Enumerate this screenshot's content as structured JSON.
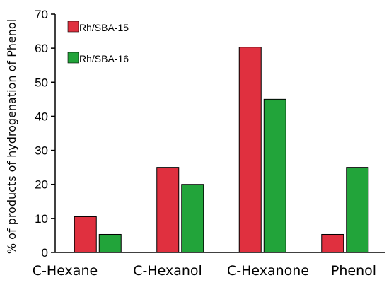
{
  "chart_data": {
    "type": "bar",
    "title": "",
    "xlabel": "",
    "ylabel": "% of products of hydrogenation of Phenol",
    "ylim": [
      0,
      70
    ],
    "yticks": [
      0,
      10,
      20,
      30,
      40,
      50,
      60,
      70
    ],
    "categories": [
      "C-Hexane",
      "C-Hexanol",
      "C-Hexanone",
      "Phenol"
    ],
    "series": [
      {
        "name": "Rh/SBA-15",
        "color": "#e0303f",
        "values": [
          10.5,
          25,
          60.3,
          5.3
        ]
      },
      {
        "name": "Rh/SBA-16",
        "color": "#22a43a",
        "values": [
          5.3,
          20,
          45,
          25
        ]
      }
    ],
    "grid": false,
    "legend_position": "top-left"
  }
}
